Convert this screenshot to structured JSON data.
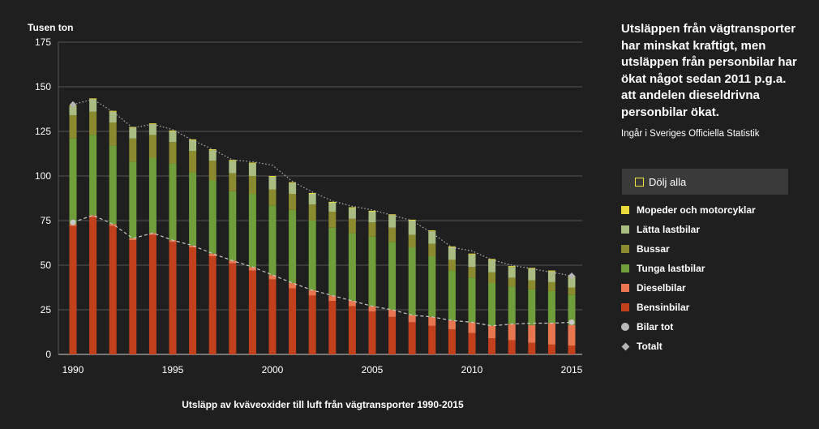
{
  "chart_data": {
    "type": "bar",
    "stacked": true,
    "unit_label": "Tusen ton",
    "caption": "Utsläpp av kväveoxider till luft från vägtransporter 1990-2015",
    "x": [
      1990,
      1991,
      1992,
      1993,
      1994,
      1995,
      1996,
      1997,
      1998,
      1999,
      2000,
      2001,
      2002,
      2003,
      2004,
      2005,
      2006,
      2007,
      2008,
      2009,
      2010,
      2011,
      2012,
      2013,
      2014,
      2015
    ],
    "x_tick_labels": [
      "1990",
      "1995",
      "2000",
      "2005",
      "2010",
      "2015"
    ],
    "y_tick_labels": [
      "0",
      "25",
      "50",
      "75",
      "100",
      "125",
      "150",
      "175"
    ],
    "ylim": [
      0,
      175
    ],
    "grid": true,
    "series": [
      {
        "name": "Bensinbilar",
        "color": "#c2401c",
        "values": [
          72,
          77,
          72,
          64,
          67,
          63,
          60,
          55,
          51,
          47,
          42,
          37,
          33,
          30,
          27,
          24,
          21,
          18,
          16,
          14,
          12,
          9,
          8,
          6.5,
          5.5,
          5
        ]
      },
      {
        "name": "Dieselbilar",
        "color": "#e8764e",
        "values": [
          1,
          1,
          1,
          1,
          1,
          1,
          1,
          1.5,
          1.5,
          2,
          2.5,
          3,
          3,
          3,
          3,
          3,
          4,
          4,
          5,
          5,
          6,
          7,
          9,
          10,
          12,
          11.5
        ]
      },
      {
        "name": "Tunga lastbilar",
        "color": "#6f9e3a",
        "values": [
          48,
          45,
          44,
          43,
          42,
          43,
          41,
          41,
          39,
          41,
          39,
          41,
          39,
          38,
          38,
          39,
          38,
          38,
          34,
          28,
          25,
          24,
          21,
          20,
          18,
          17
        ]
      },
      {
        "name": "Bussar",
        "color": "#8c8a2e",
        "values": [
          13,
          13,
          13,
          13,
          13,
          12,
          12,
          11,
          10,
          10,
          9,
          9,
          9,
          9,
          8,
          8,
          8,
          7,
          7,
          6,
          6,
          6,
          5,
          5,
          5,
          4
        ]
      },
      {
        "name": "Lätta lastbilar",
        "color": "#a9bc82",
        "values": [
          5,
          7,
          6,
          6,
          6,
          6,
          6,
          6,
          7,
          7,
          7,
          6,
          6,
          5,
          6,
          6,
          7,
          8,
          7,
          7,
          7,
          7,
          6,
          6.5,
          6,
          6
        ]
      },
      {
        "name": "Mopeder och motorcyklar",
        "color": "#e7d93a",
        "values": [
          0.5,
          0.5,
          0.5,
          0.5,
          0.5,
          0.5,
          0.5,
          0.5,
          0.5,
          0.5,
          0.5,
          0.5,
          0.5,
          0.5,
          0.5,
          0.5,
          0.5,
          0.5,
          0.5,
          0.5,
          0.5,
          0.5,
          0.5,
          0.5,
          0.5,
          0.5
        ]
      }
    ],
    "lines": [
      {
        "name": "Bilar tot",
        "color": "#c8c8c8",
        "marker": "circle",
        "values": [
          74,
          78,
          73,
          65,
          68,
          64,
          61,
          56.5,
          52.5,
          49,
          44.5,
          40,
          36,
          33,
          30,
          27,
          25,
          22,
          21,
          19,
          18,
          16,
          17,
          17.5,
          17.5,
          18
        ]
      },
      {
        "name": "Totalt",
        "color": "#b4b4b4",
        "marker": "diamond",
        "values": [
          140,
          143,
          136,
          127,
          129,
          126,
          120,
          115,
          109,
          108,
          106,
          97,
          91,
          86,
          83,
          81,
          78,
          75,
          68,
          60,
          58,
          53,
          50,
          48,
          46,
          44
        ]
      }
    ]
  },
  "panel": {
    "headline": "Utsläppen från vägtransporter har minskat kraftigt, men utsläppen från personbilar har ökat något sedan 2011 p.g.a. att andelen dieseldrivna personbilar ökat.",
    "source": "Ingår i Sveriges Officiella Statistik",
    "hide_all_label": "Dölj alla",
    "hide_all_color": "#f0e442"
  },
  "legend": [
    {
      "label": "Mopeder och motorcyklar",
      "color": "#e7d93a",
      "shape": "square"
    },
    {
      "label": "Lätta lastbilar",
      "color": "#a9bc82",
      "shape": "square"
    },
    {
      "label": "Bussar",
      "color": "#8c8a2e",
      "shape": "square"
    },
    {
      "label": "Tunga lastbilar",
      "color": "#6f9e3a",
      "shape": "square"
    },
    {
      "label": "Dieselbilar",
      "color": "#e8764e",
      "shape": "square"
    },
    {
      "label": "Bensinbilar",
      "color": "#c2401c",
      "shape": "square"
    },
    {
      "label": "Bilar tot",
      "color": "#b9b9b9",
      "shape": "circle"
    },
    {
      "label": "Totalt",
      "color": "#b4b4b4",
      "shape": "diamond"
    }
  ]
}
